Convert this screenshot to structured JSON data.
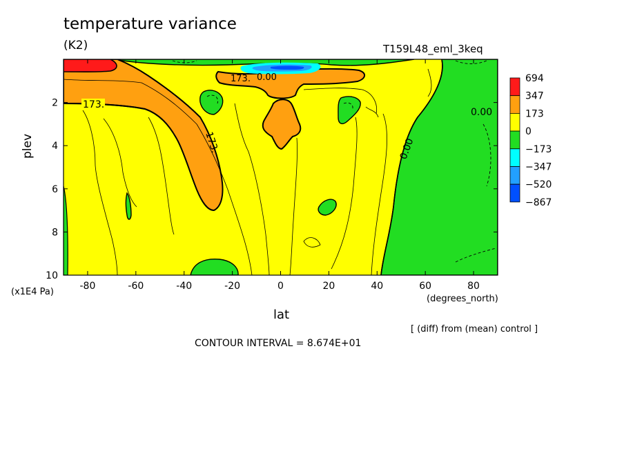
{
  "chart_data": {
    "type": "heatmap",
    "title": "temperature variance",
    "units": "(K2)",
    "run_label": "T159L48_eml_3keq",
    "xlabel": "lat",
    "x_units": "(degrees_north)",
    "ylabel": "plev",
    "y_units": "(x1E4 Pa)",
    "xlim": [
      -90,
      90
    ],
    "ylim": [
      10,
      0
    ],
    "x_ticks": [
      "-80",
      "-60",
      "-40",
      "-20",
      "0",
      "20",
      "40",
      "60",
      "80"
    ],
    "x_tick_values": [
      -80,
      -60,
      -40,
      -20,
      0,
      20,
      40,
      60,
      80
    ],
    "y_ticks": [
      "2",
      "4",
      "6",
      "8",
      "10"
    ],
    "y_tick_values": [
      2,
      4,
      6,
      8,
      10
    ],
    "contour_labels": [
      "173.",
      "173.",
      "173.",
      "0.00",
      "0.00",
      "0.00"
    ],
    "colorbar": {
      "labels": [
        "694",
        "347",
        "173",
        "0",
        "−173",
        "−347",
        "−520",
        "−867"
      ],
      "colors": [
        "#ff1a1a",
        "#ffa010",
        "#ffff00",
        "#22dd22",
        "#00ffff",
        "#22a0ff",
        "#0050ff"
      ]
    },
    "note": "[ (diff) from (mean) control ]",
    "contour_interval": "CONTOUR INTERVAL = 8.674E+01",
    "colors": {
      "high": "#ff1a1a",
      "orange": "#ffa010",
      "yellow": "#ffff00",
      "green": "#22dd22",
      "cyan": "#00ffff",
      "lightblue": "#22a0ff",
      "blue": "#0050ff"
    }
  }
}
